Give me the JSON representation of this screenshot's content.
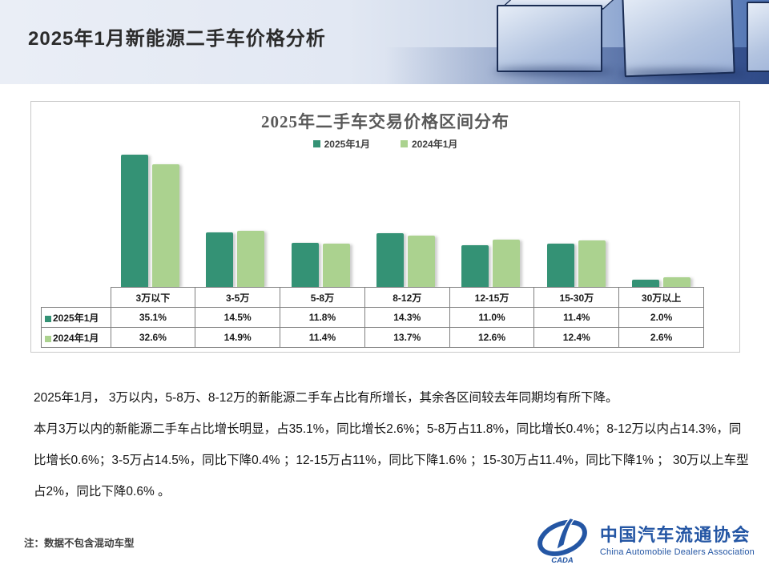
{
  "header": {
    "title": "2025年1月新能源二手车价格分析"
  },
  "chart_data": {
    "type": "bar",
    "title": "2025年二手车交易价格区间分布",
    "categories": [
      "3万以下",
      "3-5万",
      "5-8万",
      "8-12万",
      "12-15万",
      "15-30万",
      "30万以上"
    ],
    "series": [
      {
        "name": "2025年1月",
        "color": "#349275",
        "values": [
          35.1,
          14.5,
          11.8,
          14.3,
          11.0,
          11.4,
          2.0
        ]
      },
      {
        "name": "2024年1月",
        "color": "#ABD28F",
        "values": [
          32.6,
          14.9,
          11.4,
          13.7,
          12.6,
          12.4,
          2.6
        ]
      }
    ],
    "value_suffix": "%",
    "ylim": [
      0,
      37
    ],
    "grid": false,
    "legend_position": "top",
    "data_table_shown": true
  },
  "body": {
    "paragraphs": [
      "2025年1月， 3万以内，5-8万、8-12万的新能源二手车占比有所增长，其余各区间较去年同期均有所下降。",
      "本月3万以内的新能源二手车占比增长明显，占35.1%，同比增长2.6%；5-8万占11.8%，同比增长0.4%；8-12万以内占14.3%，同比增长0.6%；3-5万占14.5%，同比下降0.4% ；12-15万占11%，同比下降1.6% ；15-30万占11.4%，同比下降1% ；  30万以上车型占2%，同比下降0.6% 。"
    ]
  },
  "footnote": "注：数据不包含混动车型",
  "logo": {
    "cn": "中国汽车流通协会",
    "en": "China Automobile Dealers Association",
    "mark": "CADA",
    "color": "#2456A4"
  }
}
